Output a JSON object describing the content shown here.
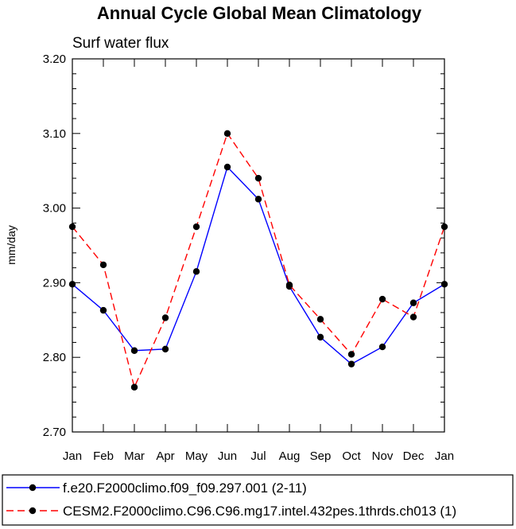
{
  "chart_data": {
    "type": "line",
    "title": "Annual Cycle Global Mean Climatology",
    "subtitle": "Surf water flux",
    "ylabel": "mm/day",
    "xlabel": "",
    "categories": [
      "Jan",
      "Feb",
      "Mar",
      "Apr",
      "May",
      "Jun",
      "Jul",
      "Aug",
      "Sep",
      "Oct",
      "Nov",
      "Dec",
      "Jan"
    ],
    "ylim": [
      2.7,
      3.2
    ],
    "yticks": [
      "2.70",
      "2.80",
      "2.90",
      "3.00",
      "3.10",
      "3.20"
    ],
    "series": [
      {
        "name": "f.e20.F2000climo.f09_f09.297.001 (2-11)",
        "color": "#0000ff",
        "dash": "solid",
        "values": [
          2.898,
          2.863,
          2.809,
          2.811,
          2.915,
          3.055,
          3.012,
          2.895,
          2.827,
          2.791,
          2.814,
          2.873,
          2.898
        ]
      },
      {
        "name": "CESM2.F2000climo.C96.C96.mg17.intel.432pes.1thrds.ch013 (1)",
        "color": "#ff0000",
        "dash": "dashed",
        "values": [
          2.975,
          2.924,
          2.76,
          2.853,
          2.975,
          3.1,
          3.04,
          2.897,
          2.851,
          2.804,
          2.878,
          2.854,
          2.975
        ]
      }
    ],
    "legend_position": "bottom"
  }
}
